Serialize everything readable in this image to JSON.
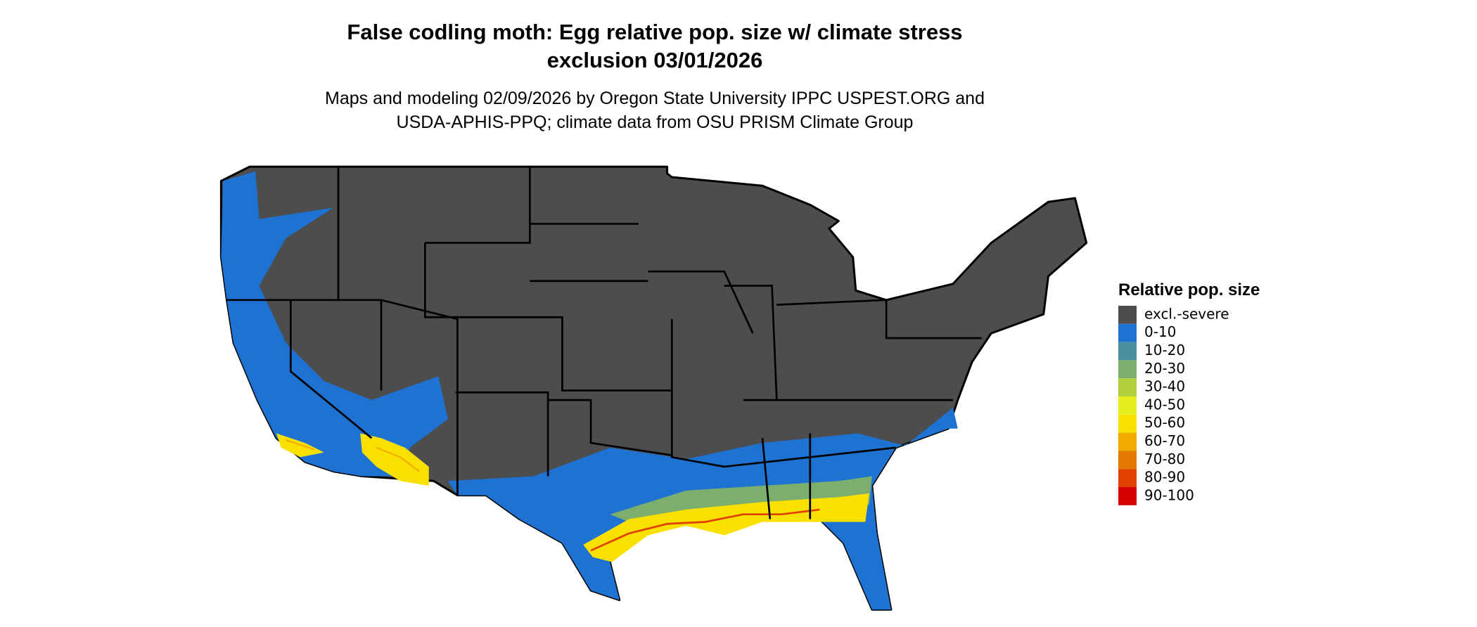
{
  "title_lines": [
    "False codling moth: Egg relative pop. size w/ climate stress",
    "exclusion 03/01/2026"
  ],
  "subtitle_lines": [
    "Maps and modeling 02/09/2026 by Oregon State University IPPC USPEST.ORG and",
    "USDA-APHIS-PPQ; climate data from OSU PRISM Climate Group"
  ],
  "legend": {
    "title": "Relative pop. size",
    "items": [
      {
        "label": "excl.-severe",
        "color": "#4d4d4d"
      },
      {
        "label": "0-10",
        "color": "#1e72d2"
      },
      {
        "label": "10-20",
        "color": "#4a8fa0"
      },
      {
        "label": "20-30",
        "color": "#7cae6e"
      },
      {
        "label": "30-40",
        "color": "#b3cf3e"
      },
      {
        "label": "40-50",
        "color": "#e6ef1e"
      },
      {
        "label": "50-60",
        "color": "#f8e000"
      },
      {
        "label": "60-70",
        "color": "#f0aa00"
      },
      {
        "label": "70-80",
        "color": "#e57a00"
      },
      {
        "label": "80-90",
        "color": "#e04000"
      },
      {
        "label": "90-100",
        "color": "#d40000"
      }
    ]
  }
}
